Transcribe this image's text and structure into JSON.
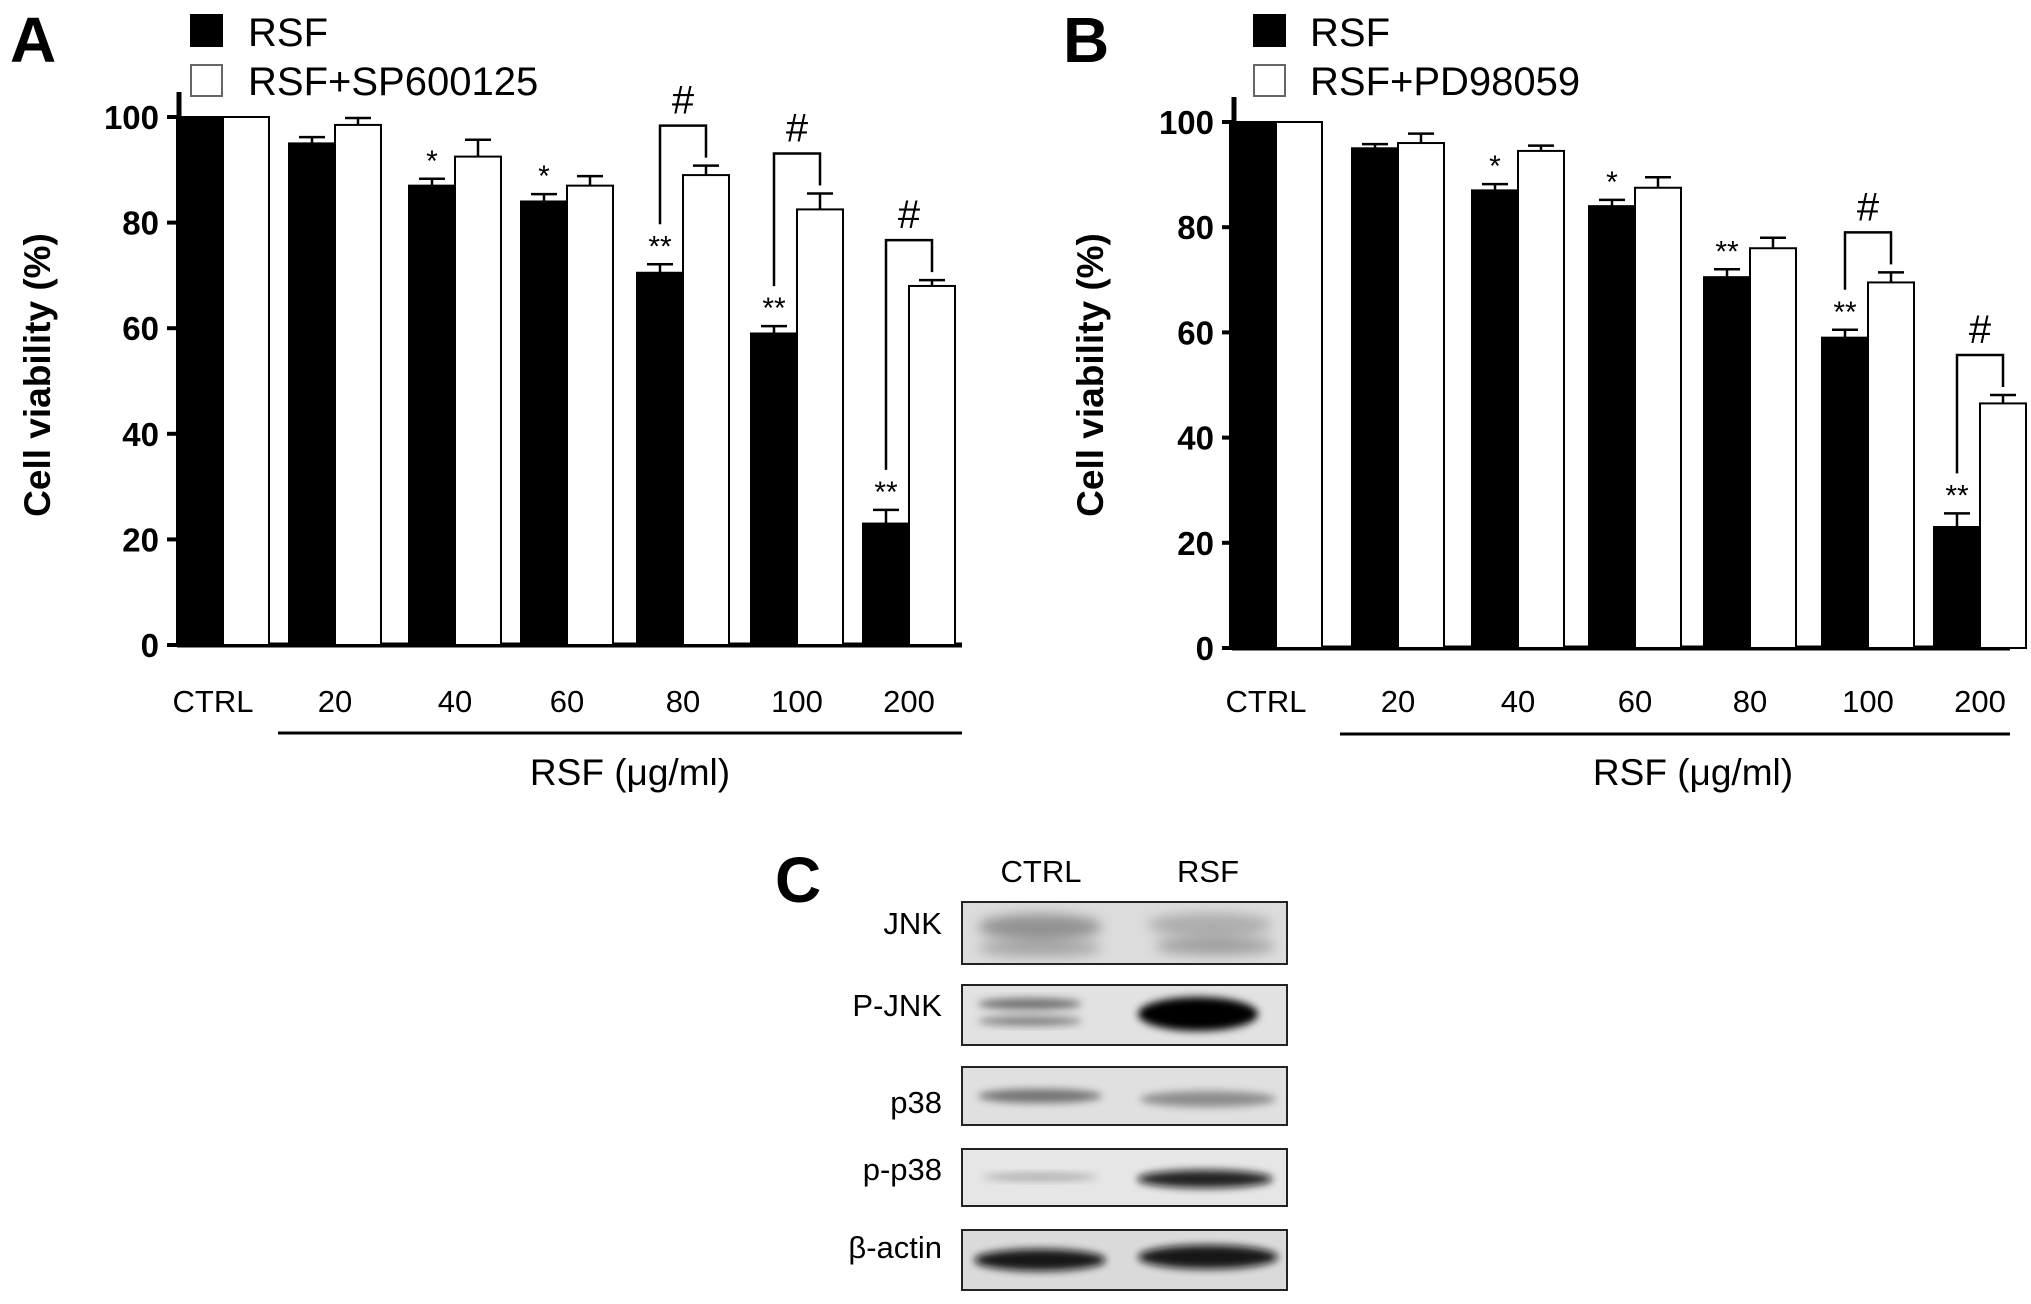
{
  "chart_data": [
    {
      "panel": "A",
      "type": "bar",
      "ylabel": "Cell viability (%)",
      "xlabel": "RSF (μg/ml)",
      "ylim": [
        0,
        100
      ],
      "yticks": [
        "0",
        "20",
        "40",
        "60",
        "80",
        "100"
      ],
      "categories": [
        "CTRL",
        "20",
        "40",
        "60",
        "80",
        "100",
        "200"
      ],
      "series": [
        {
          "name": "RSF",
          "color": "#000000",
          "values": [
            100,
            95,
            87,
            84,
            70.5,
            59,
            23
          ],
          "errors": [
            0,
            1.2,
            1.3,
            1.4,
            1.6,
            1.4,
            2.6
          ],
          "marks": [
            "",
            "",
            "*",
            "*",
            "**",
            "**",
            "**"
          ]
        },
        {
          "name": "RSF+SP600125",
          "color": "#ffffff",
          "values": [
            100,
            98.5,
            92.5,
            87,
            89,
            82.5,
            68
          ],
          "errors": [
            0,
            1.3,
            3.2,
            1.8,
            1.8,
            3,
            1.1
          ],
          "marks": [
            "",
            "",
            "",
            "",
            "",
            "",
            ""
          ]
        }
      ],
      "brackets": [
        {
          "category": "80",
          "label": "#"
        },
        {
          "category": "100",
          "label": "#"
        },
        {
          "category": "200",
          "label": "#"
        }
      ]
    },
    {
      "panel": "B",
      "type": "bar",
      "ylabel": "Cell viability (%)",
      "xlabel": "RSF (μg/ml)",
      "ylim": [
        0,
        100
      ],
      "yticks": [
        "0",
        "20",
        "40",
        "60",
        "80",
        "100"
      ],
      "categories": [
        "CTRL",
        "20",
        "40",
        "60",
        "80",
        "100",
        "200"
      ],
      "series": [
        {
          "name": "RSF",
          "color": "#000000",
          "values": [
            100,
            95,
            87,
            84,
            70.5,
            59,
            23
          ],
          "errors": [
            0,
            0.8,
            1.2,
            1.2,
            1.5,
            1.5,
            2.6
          ],
          "marks": [
            "",
            "",
            "*",
            "*",
            "**",
            "**",
            "**"
          ]
        },
        {
          "name": "RSF+PD98059",
          "color": "#ffffff",
          "values": [
            100,
            96,
            94.5,
            87.5,
            76,
            69.5,
            46.5
          ],
          "errors": [
            0,
            1.8,
            1,
            2,
            2,
            1.9,
            1.6
          ],
          "marks": [
            "",
            "",
            "",
            "",
            "",
            "",
            ""
          ]
        }
      ],
      "brackets": [
        {
          "category": "100",
          "label": "#"
        },
        {
          "category": "200",
          "label": "#"
        }
      ]
    }
  ],
  "western_blot": {
    "panel": "C",
    "lanes": [
      "CTRL",
      "RSF"
    ],
    "proteins": [
      "JNK",
      "P-JNK",
      "p38",
      "p-p38",
      "β-actin"
    ]
  }
}
